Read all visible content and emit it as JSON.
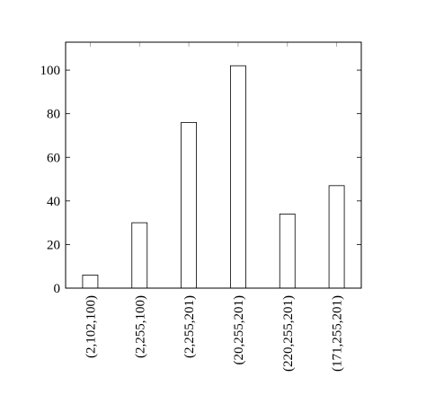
{
  "chart_data": {
    "type": "bar",
    "categories": [
      "(2,102,100)",
      "(2,255,100)",
      "(2,255,201)",
      "(20,255,201)",
      "(220,255,201)",
      "(171,255,201)"
    ],
    "values": [
      6,
      30,
      76,
      102,
      34,
      47
    ],
    "color": "#ffffff",
    "ylim": [
      0,
      112.8
    ],
    "yticks": [
      0,
      20,
      40,
      60,
      80,
      100
    ],
    "grid": false
  }
}
